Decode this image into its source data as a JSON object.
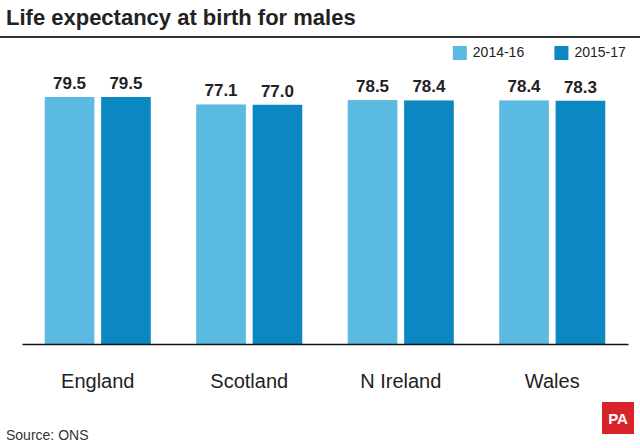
{
  "chart_data": {
    "type": "bar",
    "title": "Life expectancy at birth for males",
    "categories": [
      "England",
      "Scotland",
      "N Ireland",
      "Wales"
    ],
    "series": [
      {
        "name": "2014-16",
        "color": "#5bbae2",
        "values": [
          79.5,
          77.1,
          78.5,
          78.4
        ],
        "value_labels": [
          "79.5",
          "77.1",
          "78.5",
          "78.4"
        ]
      },
      {
        "name": "2015-17",
        "color": "#0b87c1",
        "values": [
          79.5,
          77.0,
          78.4,
          78.3
        ],
        "value_labels": [
          "79.5",
          "77.0",
          "78.4",
          "78.3"
        ]
      }
    ],
    "ylim": [
      0,
      79.5
    ],
    "data_labels": true,
    "tick_labels": "x",
    "legend": "top-right",
    "source": "Source: ONS",
    "logo": "PA"
  }
}
